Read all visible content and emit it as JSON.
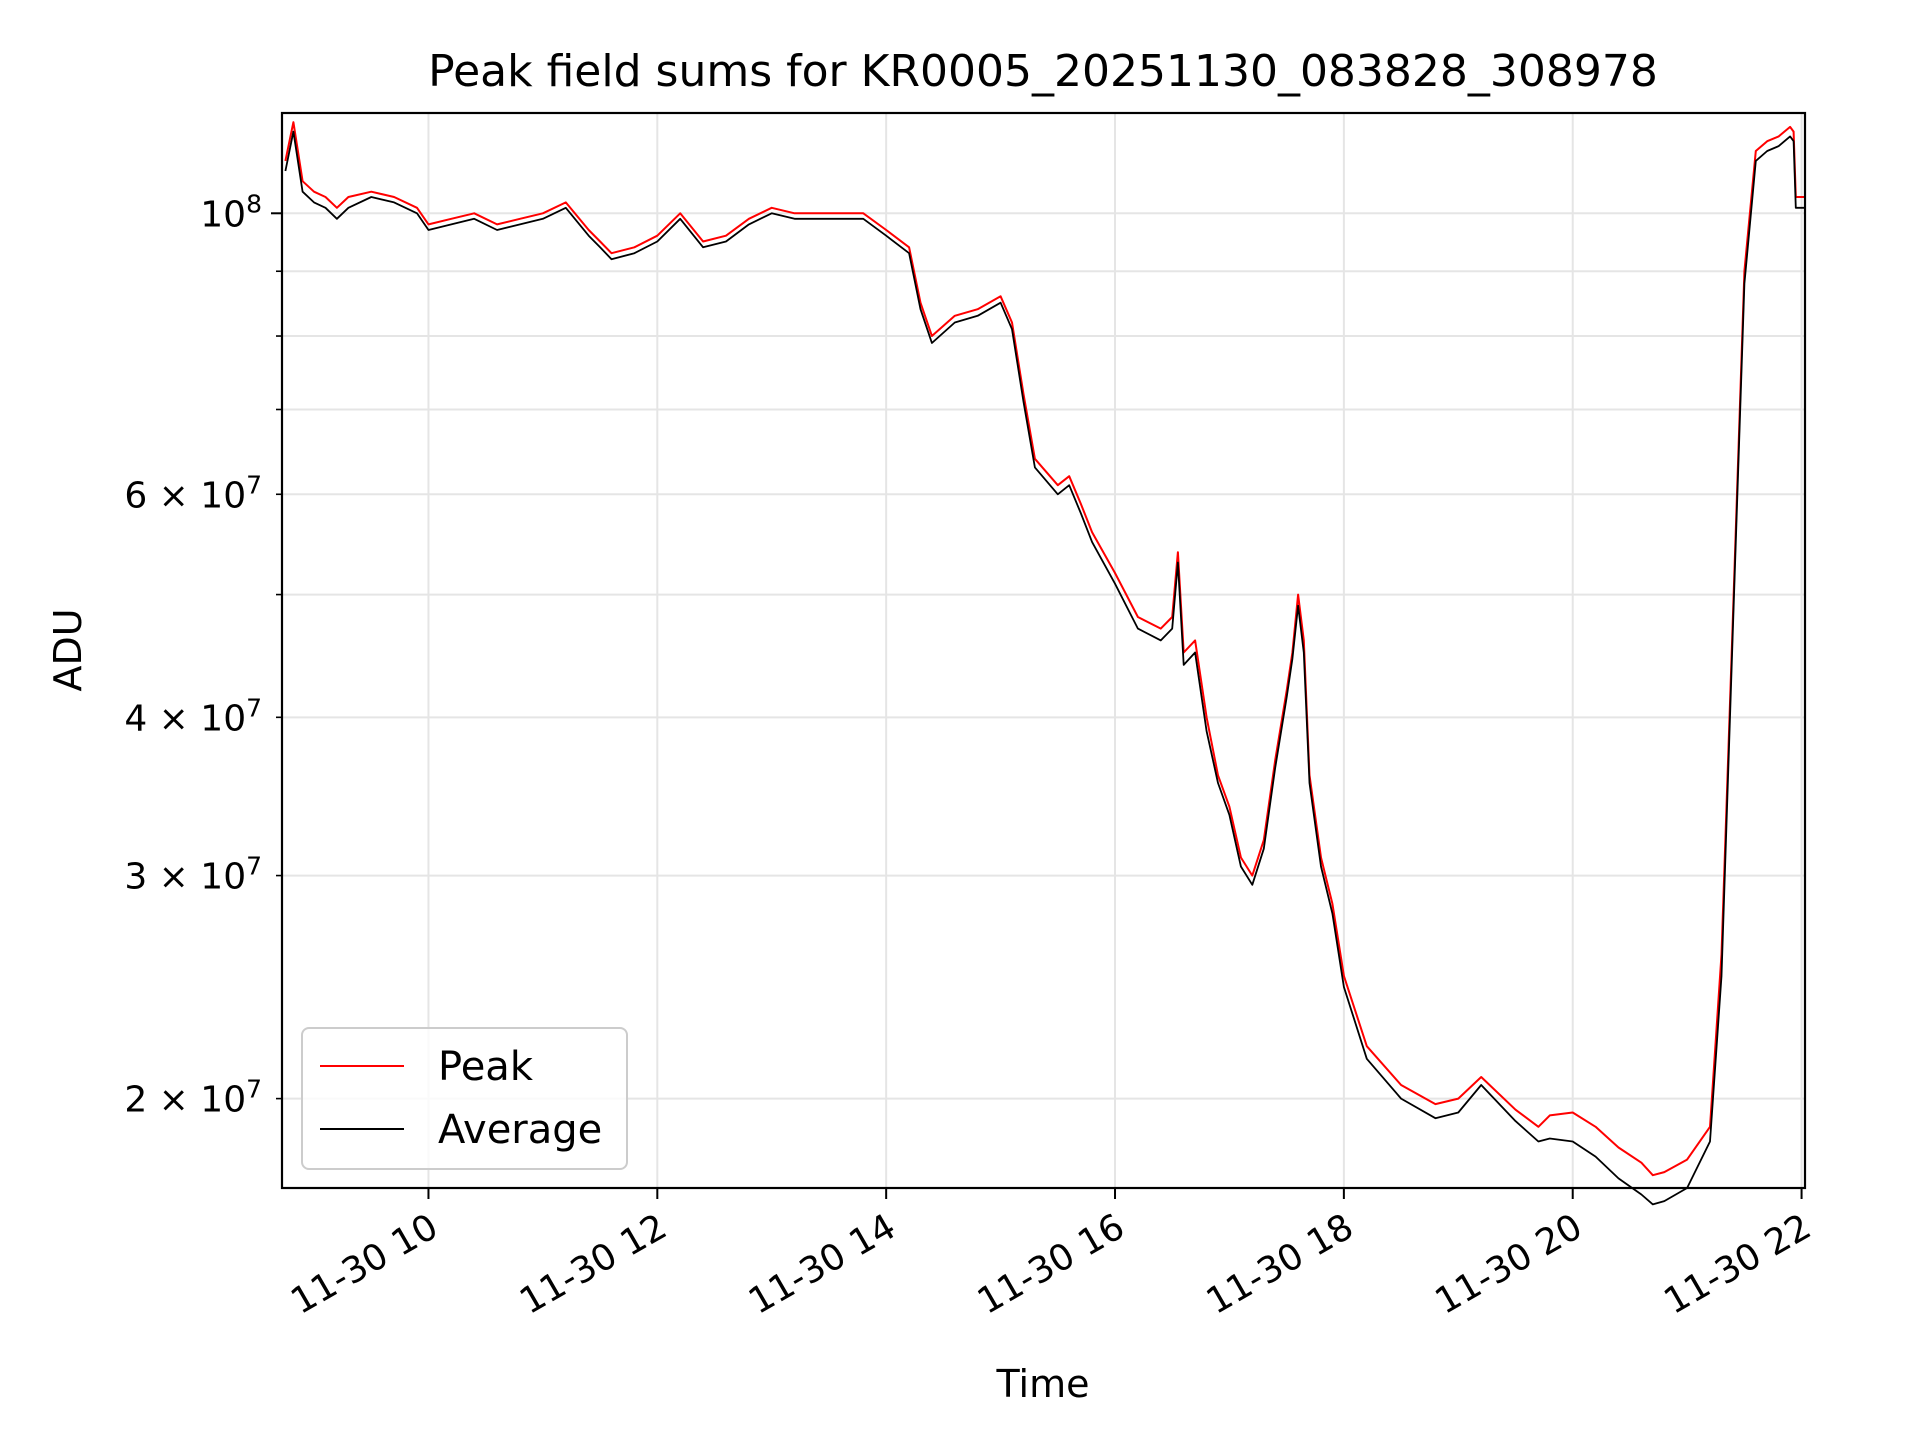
{
  "chart_data": {
    "type": "line",
    "title": "Peak field sums for KR0005_20251130_083828_308978",
    "xlabel": "Time",
    "ylabel": "ADU",
    "yscale": "log",
    "grid": true,
    "legend_position": "lower-left",
    "x_unit": "hours since 2025-11-30 00:00",
    "xlim": [
      8.72,
      22.03
    ],
    "ylim": [
      17000000,
      120000000
    ],
    "x_ticks": [
      {
        "value": 10,
        "label": "11-30 10"
      },
      {
        "value": 12,
        "label": "11-30 12"
      },
      {
        "value": 14,
        "label": "11-30 14"
      },
      {
        "value": 16,
        "label": "11-30 16"
      },
      {
        "value": 18,
        "label": "11-30 18"
      },
      {
        "value": 20,
        "label": "11-30 20"
      },
      {
        "value": 22,
        "label": "11-30 22"
      }
    ],
    "y_major_ticks": [
      {
        "value": 100000000,
        "base": "10",
        "exp": "8"
      }
    ],
    "y_minor_ticks": [
      {
        "value": 20000000,
        "mant": "2",
        "exp": "7"
      },
      {
        "value": 30000000,
        "mant": "3",
        "exp": "7"
      },
      {
        "value": 40000000,
        "mant": "4",
        "exp": "7"
      },
      {
        "value": 50000000
      },
      {
        "value": 60000000,
        "mant": "6",
        "exp": "7"
      },
      {
        "value": 70000000
      },
      {
        "value": 80000000
      },
      {
        "value": 90000000
      }
    ],
    "times_sign": "×",
    "series": [
      {
        "name": "Peak",
        "color": "#ff0000",
        "x": [
          8.75,
          8.82,
          8.9,
          9.0,
          9.1,
          9.2,
          9.3,
          9.5,
          9.7,
          9.9,
          10.0,
          10.2,
          10.4,
          10.6,
          10.8,
          11.0,
          11.2,
          11.4,
          11.5,
          11.6,
          11.8,
          12.0,
          12.2,
          12.4,
          12.6,
          12.8,
          13.0,
          13.2,
          13.5,
          13.8,
          14.0,
          14.2,
          14.3,
          14.4,
          14.6,
          14.8,
          15.0,
          15.1,
          15.2,
          15.3,
          15.5,
          15.6,
          15.7,
          15.8,
          16.0,
          16.2,
          16.4,
          16.5,
          16.55,
          16.6,
          16.7,
          16.8,
          16.9,
          17.0,
          17.1,
          17.2,
          17.3,
          17.4,
          17.5,
          17.55,
          17.6,
          17.65,
          17.7,
          17.8,
          17.9,
          18.0,
          18.2,
          18.5,
          18.8,
          19.0,
          19.2,
          19.5,
          19.7,
          19.8,
          20.0,
          20.2,
          20.4,
          20.6,
          20.7,
          20.8,
          21.0,
          21.2,
          21.3,
          21.4,
          21.5,
          21.6,
          21.7,
          21.8,
          21.9,
          21.93,
          21.95,
          22.03
        ],
        "values": [
          110000000,
          118000000,
          106000000,
          104000000,
          103000000,
          101000000,
          103000000,
          104000000,
          103000000,
          101000000,
          98000000,
          99000000,
          100000000,
          98000000,
          99000000,
          100000000,
          102000000,
          97000000,
          95000000,
          93000000,
          94000000,
          96000000,
          100000000,
          95000000,
          96000000,
          99000000,
          101000000,
          100000000,
          100000000,
          100000000,
          97000000,
          94000000,
          85000000,
          80000000,
          83000000,
          84000000,
          86000000,
          82000000,
          72000000,
          64000000,
          61000000,
          62000000,
          59000000,
          56000000,
          52000000,
          48000000,
          47000000,
          48000000,
          54000000,
          45000000,
          46000000,
          40000000,
          36000000,
          34000000,
          31000000,
          30000000,
          32000000,
          37000000,
          42000000,
          45000000,
          50000000,
          46000000,
          36000000,
          31000000,
          28500000,
          25000000,
          22000000,
          20500000,
          19800000,
          20000000,
          20800000,
          19600000,
          19000000,
          19400000,
          19500000,
          19000000,
          18300000,
          17800000,
          17400000,
          17500000,
          17900000,
          19000000,
          26000000,
          48000000,
          90000000,
          112000000,
          114000000,
          115000000,
          117000000,
          116000000,
          103000000,
          103000000
        ]
      },
      {
        "name": "Average",
        "color": "#000000",
        "x": [
          8.75,
          8.82,
          8.9,
          9.0,
          9.1,
          9.2,
          9.3,
          9.5,
          9.7,
          9.9,
          10.0,
          10.2,
          10.4,
          10.6,
          10.8,
          11.0,
          11.2,
          11.4,
          11.5,
          11.6,
          11.8,
          12.0,
          12.2,
          12.4,
          12.6,
          12.8,
          13.0,
          13.2,
          13.5,
          13.8,
          14.0,
          14.2,
          14.3,
          14.4,
          14.6,
          14.8,
          15.0,
          15.1,
          15.2,
          15.3,
          15.5,
          15.6,
          15.7,
          15.8,
          16.0,
          16.2,
          16.4,
          16.5,
          16.55,
          16.6,
          16.7,
          16.8,
          16.9,
          17.0,
          17.1,
          17.2,
          17.3,
          17.4,
          17.5,
          17.55,
          17.6,
          17.65,
          17.7,
          17.8,
          17.9,
          18.0,
          18.2,
          18.5,
          18.8,
          19.0,
          19.2,
          19.5,
          19.7,
          19.8,
          20.0,
          20.2,
          20.4,
          20.6,
          20.7,
          20.8,
          21.0,
          21.2,
          21.3,
          21.4,
          21.5,
          21.6,
          21.7,
          21.8,
          21.9,
          21.93,
          21.95,
          22.03
        ],
        "values": [
          108000000,
          116000000,
          104000000,
          102000000,
          101000000,
          99000000,
          101000000,
          103000000,
          102000000,
          100000000,
          97000000,
          98000000,
          99000000,
          97000000,
          98000000,
          99000000,
          101000000,
          96000000,
          94000000,
          92000000,
          93000000,
          95000000,
          99000000,
          94000000,
          95000000,
          98000000,
          100000000,
          99000000,
          99000000,
          99000000,
          96000000,
          93000000,
          84000000,
          79000000,
          82000000,
          83000000,
          85000000,
          81000000,
          71000000,
          63000000,
          60000000,
          61000000,
          58000000,
          55000000,
          51000000,
          47000000,
          46000000,
          47000000,
          53000000,
          44000000,
          45000000,
          39000000,
          35500000,
          33500000,
          30500000,
          29500000,
          31500000,
          36500000,
          41500000,
          44500000,
          49000000,
          45000000,
          35500000,
          30500000,
          28000000,
          24500000,
          21500000,
          20000000,
          19300000,
          19500000,
          20500000,
          19200000,
          18500000,
          18600000,
          18500000,
          18000000,
          17300000,
          16800000,
          16500000,
          16600000,
          17000000,
          18500000,
          25000000,
          47000000,
          88000000,
          110000000,
          112000000,
          113000000,
          115000000,
          114000000,
          101000000,
          101000000
        ]
      }
    ]
  }
}
